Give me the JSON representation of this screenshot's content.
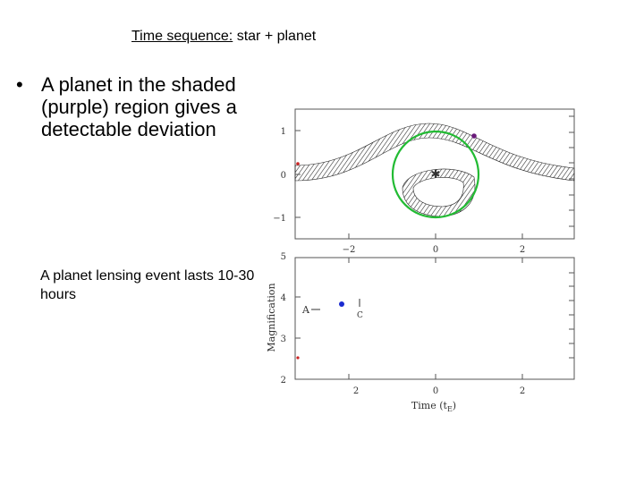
{
  "slide": {
    "title_underlined": "Time sequence:",
    "title_rest": " star + planet",
    "bullet_char": "•",
    "bullet_text": "A planet in the shaded (purple) region gives a detectable deviation",
    "note_text": "A planet lensing event lasts 10-30 hours"
  },
  "figure": {
    "top_panel": {
      "y_ticks": [
        "1",
        "0",
        "−1"
      ],
      "x_ticks": [
        "−2",
        "0",
        "2"
      ]
    },
    "bottom_panel": {
      "y_ticks": [
        "5",
        "4",
        "3",
        "2"
      ],
      "x_ticks": [
        "2",
        "0",
        "2"
      ],
      "y_label": "Magnification",
      "x_label": "Time  (t",
      "x_label_sub": "E",
      "x_label_close": ")",
      "marker_a": "A",
      "marker_c": "C"
    },
    "colors": {
      "ring": "#22bb33",
      "star": "#e6a800",
      "planet": "#6a1a7a",
      "point_red": "#cc2222",
      "point_blue": "#1a2ad0"
    }
  }
}
